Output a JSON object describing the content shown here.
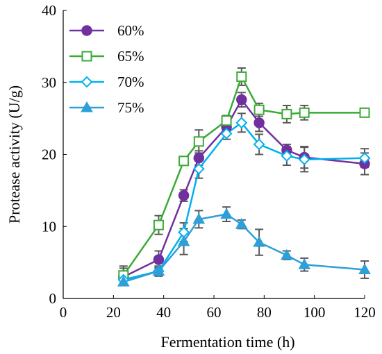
{
  "chart_data": {
    "type": "line",
    "title": "",
    "xlabel": "Fermentation time (h)",
    "ylabel": "Protease activity (U/g)",
    "xlim": [
      0,
      120
    ],
    "ylim": [
      0,
      40
    ],
    "xticks": [
      "0",
      "20",
      "40",
      "60",
      "80",
      "100",
      "120"
    ],
    "yticks": [
      "0",
      "10",
      "20",
      "30",
      "40"
    ],
    "grid": false,
    "legend_position": "top-left",
    "x": [
      24,
      38,
      48,
      54,
      65,
      71,
      78,
      89,
      96,
      120
    ],
    "series": [
      {
        "name": "60%",
        "color": "#7030a0",
        "marker": "circle-filled",
        "values": [
          3.0,
          5.4,
          14.3,
          19.5,
          23.8,
          27.6,
          24.4,
          20.6,
          19.6,
          18.7
        ],
        "errors": [
          1.2,
          1.2,
          0.8,
          1.0,
          0.7,
          1.0,
          1.2,
          0.8,
          1.5,
          1.5
        ]
      },
      {
        "name": "65%",
        "color": "#3aaa35",
        "marker": "square-open",
        "values": [
          3.2,
          10.2,
          19.1,
          21.8,
          24.7,
          30.8,
          26.2,
          25.6,
          25.8,
          25.8
        ],
        "errors": [
          1.3,
          1.3,
          0.5,
          1.6,
          0.7,
          1.2,
          0.9,
          1.2,
          1.0,
          0.4
        ]
      },
      {
        "name": "70%",
        "color": "#00b0f0",
        "marker": "diamond-open",
        "values": [
          2.6,
          3.8,
          9.2,
          18.0,
          22.9,
          24.4,
          21.4,
          19.8,
          19.3,
          19.5
        ],
        "errors": [
          0.6,
          0.7,
          1.3,
          1.3,
          0.8,
          1.3,
          1.4,
          1.3,
          1.7,
          1.3
        ]
      },
      {
        "name": "75%",
        "color": "#2e9fd8",
        "marker": "triangle-filled",
        "values": [
          2.3,
          3.8,
          7.9,
          11.0,
          11.7,
          10.3,
          7.8,
          6.0,
          4.7,
          4.0
        ],
        "errors": [
          0.5,
          0.5,
          1.8,
          1.2,
          1.0,
          0.6,
          1.8,
          0.6,
          0.9,
          1.2
        ]
      }
    ]
  }
}
